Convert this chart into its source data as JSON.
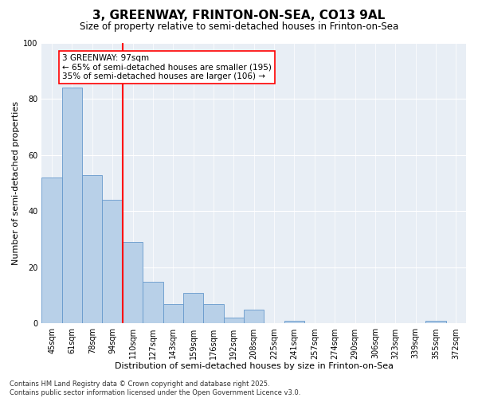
{
  "title1": "3, GREENWAY, FRINTON-ON-SEA, CO13 9AL",
  "title2": "Size of property relative to semi-detached houses in Frinton-on-Sea",
  "xlabel": "Distribution of semi-detached houses by size in Frinton-on-Sea",
  "ylabel": "Number of semi-detached properties",
  "categories": [
    "45sqm",
    "61sqm",
    "78sqm",
    "94sqm",
    "110sqm",
    "127sqm",
    "143sqm",
    "159sqm",
    "176sqm",
    "192sqm",
    "208sqm",
    "225sqm",
    "241sqm",
    "257sqm",
    "274sqm",
    "290sqm",
    "306sqm",
    "323sqm",
    "339sqm",
    "355sqm",
    "372sqm"
  ],
  "values": [
    52,
    84,
    53,
    44,
    29,
    15,
    7,
    11,
    7,
    2,
    5,
    0,
    1,
    0,
    0,
    0,
    0,
    0,
    0,
    1,
    0
  ],
  "bar_color": "#b8d0e8",
  "bar_edge_color": "#6699cc",
  "vline_x_index": 3.5,
  "vline_color": "red",
  "annotation_title": "3 GREENWAY: 97sqm",
  "annotation_line1": "← 65% of semi-detached houses are smaller (195)",
  "annotation_line2": "35% of semi-detached houses are larger (106) →",
  "annotation_box_color": "white",
  "annotation_box_edge": "red",
  "ylim": [
    0,
    100
  ],
  "yticks": [
    0,
    20,
    40,
    60,
    80,
    100
  ],
  "background_color": "#e8eef5",
  "footnote": "Contains HM Land Registry data © Crown copyright and database right 2025.\nContains public sector information licensed under the Open Government Licence v3.0.",
  "title1_fontsize": 11,
  "title2_fontsize": 8.5,
  "xlabel_fontsize": 8,
  "ylabel_fontsize": 8,
  "tick_fontsize": 7,
  "annotation_fontsize": 7.5,
  "footnote_fontsize": 6
}
